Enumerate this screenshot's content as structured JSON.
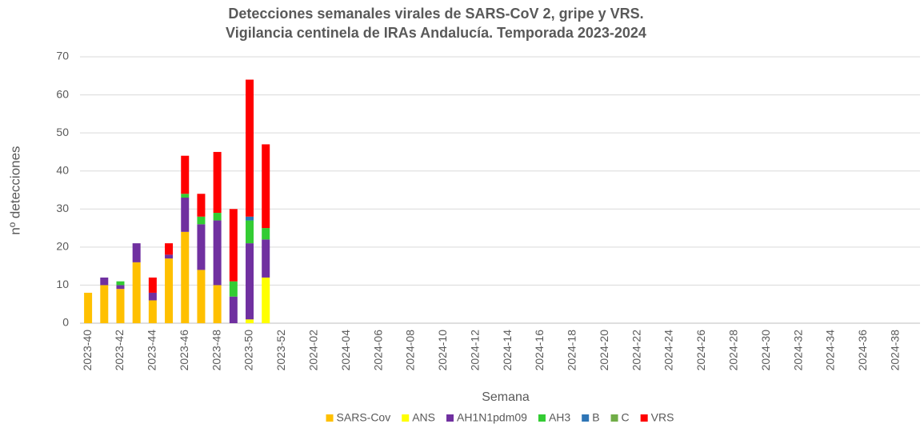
{
  "chart_data": {
    "type": "stacked_bar",
    "title": [
      "Detecciones semanales virales de SARS-CoV 2, gripe y VRS.",
      "Vigilancia  centinela de IRAs Andalucía. Temporada 2023-2024"
    ],
    "x_label": "Semana",
    "y_label": "nº detecciones",
    "categories": [
      "2023-40",
      null,
      "2023-42",
      null,
      "2023-44",
      null,
      "2023-46",
      null,
      "2023-48",
      null,
      "2023-50",
      null,
      "2023-52",
      null,
      "2024-02",
      null,
      "2024-04",
      null,
      "2024-06",
      null,
      "2024-08",
      null,
      "2024-10",
      null,
      "2024-12",
      null,
      "2024-14",
      null,
      "2024-16",
      null,
      "2024-18",
      null,
      "2024-20",
      null,
      "2024-22",
      null,
      "2024-24",
      null,
      "2024-26",
      null,
      "2024-28",
      null,
      "2024-30",
      null,
      "2024-32",
      null,
      "2024-34",
      null,
      "2024-36",
      null,
      "2024-38",
      null
    ],
    "series": [
      {
        "name": "SARS-Cov",
        "color": "#ffc000",
        "values": [
          8,
          10,
          9,
          16,
          6,
          17,
          24,
          14,
          10,
          0,
          0,
          0,
          null,
          null,
          null,
          null,
          null,
          null,
          null,
          null,
          null,
          null,
          null,
          null,
          null,
          null,
          null,
          null,
          null,
          null,
          null,
          null,
          null,
          null,
          null,
          null,
          null,
          null,
          null,
          null,
          null,
          null,
          null,
          null,
          null,
          null,
          null,
          null,
          null,
          null,
          null,
          null
        ]
      },
      {
        "name": "ANS",
        "color": "#ffff00",
        "values": [
          0,
          0,
          0,
          0,
          0,
          0,
          0,
          0,
          0,
          0,
          1,
          12,
          null,
          null,
          null,
          null,
          null,
          null,
          null,
          null,
          null,
          null,
          null,
          null,
          null,
          null,
          null,
          null,
          null,
          null,
          null,
          null,
          null,
          null,
          null,
          null,
          null,
          null,
          null,
          null,
          null,
          null,
          null,
          null,
          null,
          null,
          null,
          null,
          null,
          null,
          null,
          null
        ]
      },
      {
        "name": "AH1N1pdm09",
        "color": "#7030a0",
        "values": [
          0,
          2,
          1,
          5,
          2,
          1,
          9,
          12,
          17,
          7,
          20,
          10,
          null,
          null,
          null,
          null,
          null,
          null,
          null,
          null,
          null,
          null,
          null,
          null,
          null,
          null,
          null,
          null,
          null,
          null,
          null,
          null,
          null,
          null,
          null,
          null,
          null,
          null,
          null,
          null,
          null,
          null,
          null,
          null,
          null,
          null,
          null,
          null,
          null,
          null,
          null,
          null
        ]
      },
      {
        "name": "AH3",
        "color": "#33cc33",
        "values": [
          0,
          0,
          1,
          0,
          0,
          0,
          1,
          2,
          2,
          4,
          6,
          3,
          null,
          null,
          null,
          null,
          null,
          null,
          null,
          null,
          null,
          null,
          null,
          null,
          null,
          null,
          null,
          null,
          null,
          null,
          null,
          null,
          null,
          null,
          null,
          null,
          null,
          null,
          null,
          null,
          null,
          null,
          null,
          null,
          null,
          null,
          null,
          null,
          null,
          null,
          null,
          null
        ]
      },
      {
        "name": "B",
        "color": "#2e75b6",
        "values": [
          0,
          0,
          0,
          0,
          0,
          0,
          0,
          0,
          0,
          0,
          1,
          0,
          null,
          null,
          null,
          null,
          null,
          null,
          null,
          null,
          null,
          null,
          null,
          null,
          null,
          null,
          null,
          null,
          null,
          null,
          null,
          null,
          null,
          null,
          null,
          null,
          null,
          null,
          null,
          null,
          null,
          null,
          null,
          null,
          null,
          null,
          null,
          null,
          null,
          null,
          null,
          null
        ]
      },
      {
        "name": "C",
        "color": "#70ad47",
        "values": [
          0,
          0,
          0,
          0,
          0,
          0,
          0,
          0,
          0,
          0,
          0,
          0,
          null,
          null,
          null,
          null,
          null,
          null,
          null,
          null,
          null,
          null,
          null,
          null,
          null,
          null,
          null,
          null,
          null,
          null,
          null,
          null,
          null,
          null,
          null,
          null,
          null,
          null,
          null,
          null,
          null,
          null,
          null,
          null,
          null,
          null,
          null,
          null,
          null,
          null,
          null,
          null
        ]
      },
      {
        "name": "VRS",
        "color": "#ff0000",
        "values": [
          0,
          0,
          0,
          0,
          4,
          3,
          10,
          6,
          16,
          19,
          36,
          22,
          null,
          null,
          null,
          null,
          null,
          null,
          null,
          null,
          null,
          null,
          null,
          null,
          null,
          null,
          null,
          null,
          null,
          null,
          null,
          null,
          null,
          null,
          null,
          null,
          null,
          null,
          null,
          null,
          null,
          null,
          null,
          null,
          null,
          null,
          null,
          null,
          null,
          null,
          null,
          null
        ]
      }
    ],
    "ylim": [
      0,
      70
    ],
    "yticks": [
      0,
      10,
      20,
      30,
      40,
      50,
      60,
      70
    ],
    "grid": true,
    "legend": "bottom"
  }
}
